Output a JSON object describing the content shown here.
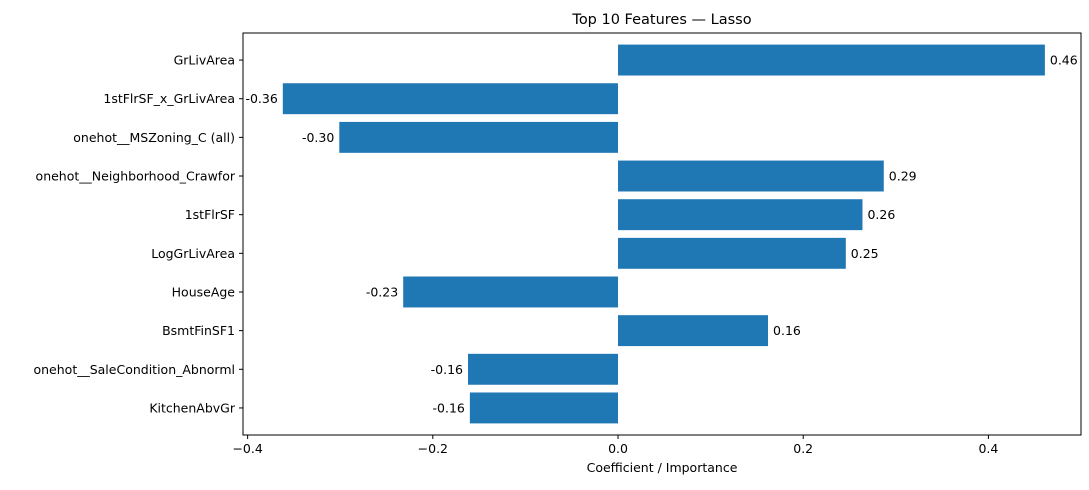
{
  "chart_data": {
    "type": "bar",
    "orientation": "horizontal",
    "title": "Top 10 Features — Lasso",
    "xlabel": "Coefficient / Importance",
    "ylabel": "",
    "xlim": [
      -0.405,
      0.5
    ],
    "xticks": [
      -0.4,
      -0.2,
      0.0,
      0.2,
      0.4
    ],
    "xtick_labels": [
      "−0.4",
      "−0.2",
      "0.0",
      "0.2",
      "0.4"
    ],
    "grid": false,
    "bar_color": "#1f77b4",
    "categories": [
      "GrLivArea",
      "1stFlrSF_x_GrLivArea",
      "onehot__MSZoning_C (all)",
      "onehot__Neighborhood_Crawfor",
      "1stFlrSF",
      "LogGrLivArea",
      "HouseAge",
      "BsmtFinSF1",
      "onehot__SaleCondition_Abnorml",
      "KitchenAbvGr"
    ],
    "values": [
      0.461,
      -0.362,
      -0.301,
      0.287,
      0.264,
      0.246,
      -0.232,
      0.162,
      -0.162,
      -0.16
    ],
    "value_labels": [
      "0.46",
      "-0.36",
      "-0.30",
      "0.29",
      "0.26",
      "0.25",
      "-0.23",
      "0.16",
      "-0.16",
      "-0.16"
    ]
  }
}
